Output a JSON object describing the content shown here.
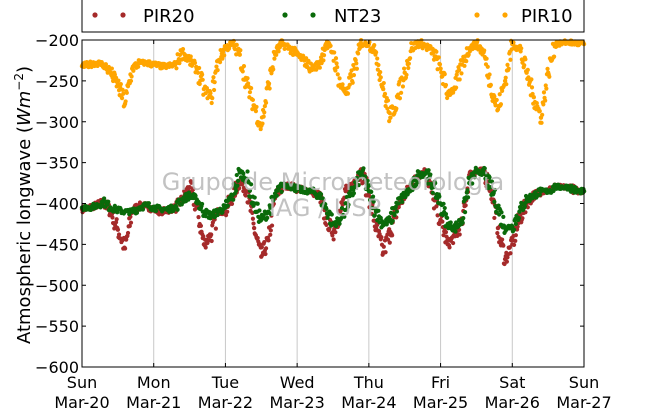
{
  "chart_data": {
    "type": "scatter",
    "title": "",
    "ylabel": "Atmospheric longwave (Wm⁻²)",
    "ylabel_parts": {
      "main": "Atmospheric longwave ",
      "paren_open": "(",
      "unit": "Wm",
      "exp": "−2",
      "paren_close": ")"
    },
    "xlabel": "",
    "ylim": [
      -600,
      -200
    ],
    "xlim": [
      0,
      7
    ],
    "x_unit": "days since Sun Mar-20",
    "yticks": [
      -600,
      -550,
      -500,
      -450,
      -400,
      -350,
      -300,
      -250,
      -200
    ],
    "ytick_labels": [
      "−600",
      "−550",
      "−500",
      "−450",
      "−400",
      "−350",
      "−300",
      "−250",
      "−200"
    ],
    "xticks": [
      {
        "day": "Sun",
        "date": "Mar-20"
      },
      {
        "day": "Mon",
        "date": "Mar-21"
      },
      {
        "day": "Tue",
        "date": "Mar-22"
      },
      {
        "day": "Wed",
        "date": "Mar-23"
      },
      {
        "day": "Thu",
        "date": "Mar-24"
      },
      {
        "day": "Fri",
        "date": "Mar-25"
      },
      {
        "day": "Sat",
        "date": "Mar-26"
      },
      {
        "day": "Sun",
        "date": "Mar-27"
      }
    ],
    "grid": "vertical",
    "legend_position": "top",
    "watermark": [
      "Grupo de Micrometeorologia",
      "IAG / USP"
    ],
    "series": [
      {
        "name": "PIR20",
        "color": "#a52a2a",
        "x": [
          0.0,
          0.1,
          0.2,
          0.3,
          0.4,
          0.5,
          0.6,
          0.7,
          0.8,
          0.9,
          1.0,
          1.1,
          1.2,
          1.3,
          1.4,
          1.5,
          1.6,
          1.7,
          1.8,
          1.9,
          2.0,
          2.1,
          2.2,
          2.3,
          2.4,
          2.5,
          2.6,
          2.7,
          2.8,
          2.9,
          3.0,
          3.1,
          3.2,
          3.3,
          3.4,
          3.5,
          3.6,
          3.7,
          3.8,
          3.9,
          4.0,
          4.1,
          4.2,
          4.3,
          4.4,
          4.5,
          4.6,
          4.7,
          4.8,
          4.9,
          5.0,
          5.1,
          5.2,
          5.3,
          5.4,
          5.5,
          5.6,
          5.7,
          5.8,
          5.9,
          6.0,
          6.1,
          6.2,
          6.3,
          6.4,
          6.5,
          6.6,
          6.7,
          6.8,
          6.9,
          7.0
        ],
        "y": [
          -407,
          -405,
          -402,
          -398,
          -410,
          -432,
          -455,
          -410,
          -402,
          -403,
          -407,
          -410,
          -408,
          -405,
          -395,
          -380,
          -405,
          -450,
          -438,
          -410,
          -410,
          -390,
          -372,
          -385,
          -430,
          -465,
          -445,
          -390,
          -380,
          -378,
          -382,
          -383,
          -385,
          -390,
          -418,
          -435,
          -410,
          -385,
          -372,
          -362,
          -390,
          -430,
          -460,
          -435,
          -405,
          -390,
          -378,
          -365,
          -360,
          -395,
          -420,
          -450,
          -440,
          -425,
          -365,
          -360,
          -360,
          -382,
          -430,
          -468,
          -450,
          -420,
          -400,
          -390,
          -385,
          -385,
          -380,
          -380,
          -380,
          -385,
          -385
        ]
      },
      {
        "name": "NT23",
        "color": "#0a6a0a",
        "x": [
          0.0,
          0.1,
          0.2,
          0.3,
          0.4,
          0.5,
          0.6,
          0.7,
          0.8,
          0.9,
          1.0,
          1.1,
          1.2,
          1.3,
          1.4,
          1.5,
          1.6,
          1.7,
          1.8,
          1.9,
          2.0,
          2.1,
          2.2,
          2.3,
          2.4,
          2.5,
          2.6,
          2.7,
          2.8,
          2.9,
          3.0,
          3.1,
          3.2,
          3.3,
          3.4,
          3.5,
          3.6,
          3.7,
          3.8,
          3.9,
          4.0,
          4.1,
          4.2,
          4.3,
          4.4,
          4.5,
          4.6,
          4.7,
          4.8,
          4.9,
          5.0,
          5.1,
          5.2,
          5.3,
          5.4,
          5.5,
          5.6,
          5.7,
          5.8,
          5.9,
          6.0,
          6.1,
          6.2,
          6.3,
          6.4,
          6.5,
          6.6,
          6.7,
          6.8,
          6.9,
          7.0
        ],
        "y": [
          -405,
          -405,
          -403,
          -398,
          -405,
          -408,
          -410,
          -410,
          -405,
          -402,
          -405,
          -407,
          -407,
          -405,
          -395,
          -390,
          -395,
          -410,
          -415,
          -410,
          -405,
          -390,
          -362,
          -370,
          -400,
          -420,
          -410,
          -390,
          -378,
          -378,
          -382,
          -385,
          -385,
          -390,
          -405,
          -425,
          -420,
          -400,
          -380,
          -362,
          -385,
          -410,
          -425,
          -420,
          -400,
          -390,
          -380,
          -365,
          -362,
          -380,
          -400,
          -425,
          -430,
          -420,
          -375,
          -362,
          -362,
          -380,
          -405,
          -430,
          -428,
          -410,
          -395,
          -390,
          -385,
          -385,
          -380,
          -380,
          -380,
          -385,
          -385
        ]
      },
      {
        "name": "PIR10",
        "color": "#ffa500",
        "x": [
          0.0,
          0.1,
          0.2,
          0.3,
          0.4,
          0.5,
          0.6,
          0.7,
          0.8,
          0.9,
          1.0,
          1.1,
          1.2,
          1.3,
          1.4,
          1.5,
          1.6,
          1.7,
          1.8,
          1.9,
          2.0,
          2.1,
          2.2,
          2.3,
          2.4,
          2.5,
          2.6,
          2.7,
          2.8,
          2.9,
          3.0,
          3.1,
          3.2,
          3.3,
          3.4,
          3.5,
          3.6,
          3.7,
          3.8,
          3.9,
          4.0,
          4.1,
          4.2,
          4.3,
          4.4,
          4.5,
          4.6,
          4.7,
          4.8,
          4.9,
          5.0,
          5.1,
          5.2,
          5.3,
          5.4,
          5.5,
          5.6,
          5.7,
          5.8,
          5.9,
          6.0,
          6.1,
          6.2,
          6.3,
          6.4,
          6.5,
          6.6,
          6.7,
          6.8,
          6.9,
          7.0
        ],
        "y": [
          -232,
          -230,
          -228,
          -230,
          -240,
          -255,
          -278,
          -235,
          -228,
          -228,
          -230,
          -232,
          -232,
          -230,
          -215,
          -225,
          -235,
          -260,
          -270,
          -225,
          -210,
          -205,
          -218,
          -255,
          -280,
          -305,
          -255,
          -215,
          -205,
          -210,
          -218,
          -225,
          -235,
          -230,
          -205,
          -215,
          -255,
          -265,
          -235,
          -205,
          -205,
          -215,
          -260,
          -295,
          -270,
          -240,
          -210,
          -203,
          -208,
          -215,
          -235,
          -265,
          -260,
          -230,
          -210,
          -205,
          -215,
          -255,
          -285,
          -250,
          -205,
          -210,
          -240,
          -270,
          -295,
          -240,
          -205,
          -203,
          -203,
          -204,
          -205
        ]
      }
    ]
  }
}
